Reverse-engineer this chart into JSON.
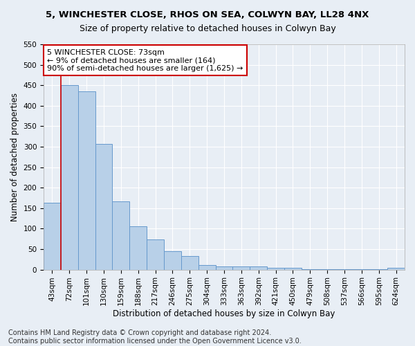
{
  "title1": "5, WINCHESTER CLOSE, RHOS ON SEA, COLWYN BAY, LL28 4NX",
  "title2": "Size of property relative to detached houses in Colwyn Bay",
  "xlabel": "Distribution of detached houses by size in Colwyn Bay",
  "ylabel": "Number of detached properties",
  "categories": [
    "43sqm",
    "72sqm",
    "101sqm",
    "130sqm",
    "159sqm",
    "188sqm",
    "217sqm",
    "246sqm",
    "275sqm",
    "304sqm",
    "333sqm",
    "363sqm",
    "392sqm",
    "421sqm",
    "450sqm",
    "479sqm",
    "508sqm",
    "537sqm",
    "566sqm",
    "595sqm",
    "624sqm"
  ],
  "values": [
    163,
    450,
    435,
    307,
    167,
    106,
    74,
    45,
    33,
    11,
    8,
    8,
    7,
    5,
    4,
    1,
    1,
    1,
    1,
    1,
    5
  ],
  "bar_color": "#b8d0e8",
  "bar_edge_color": "#6699cc",
  "marker_line_color": "#cc0000",
  "annotation_text": "5 WINCHESTER CLOSE: 73sqm\n← 9% of detached houses are smaller (164)\n90% of semi-detached houses are larger (1,625) →",
  "annotation_box_color": "#ffffff",
  "annotation_box_edge_color": "#cc0000",
  "ylim": [
    0,
    550
  ],
  "yticks": [
    0,
    50,
    100,
    150,
    200,
    250,
    300,
    350,
    400,
    450,
    500,
    550
  ],
  "footnote": "Contains HM Land Registry data © Crown copyright and database right 2024.\nContains public sector information licensed under the Open Government Licence v3.0.",
  "background_color": "#e8eef5",
  "plot_background_color": "#e8eef5",
  "title1_fontsize": 9.5,
  "title2_fontsize": 9,
  "axis_label_fontsize": 8.5,
  "tick_fontsize": 7.5,
  "annotation_fontsize": 8,
  "footnote_fontsize": 7
}
